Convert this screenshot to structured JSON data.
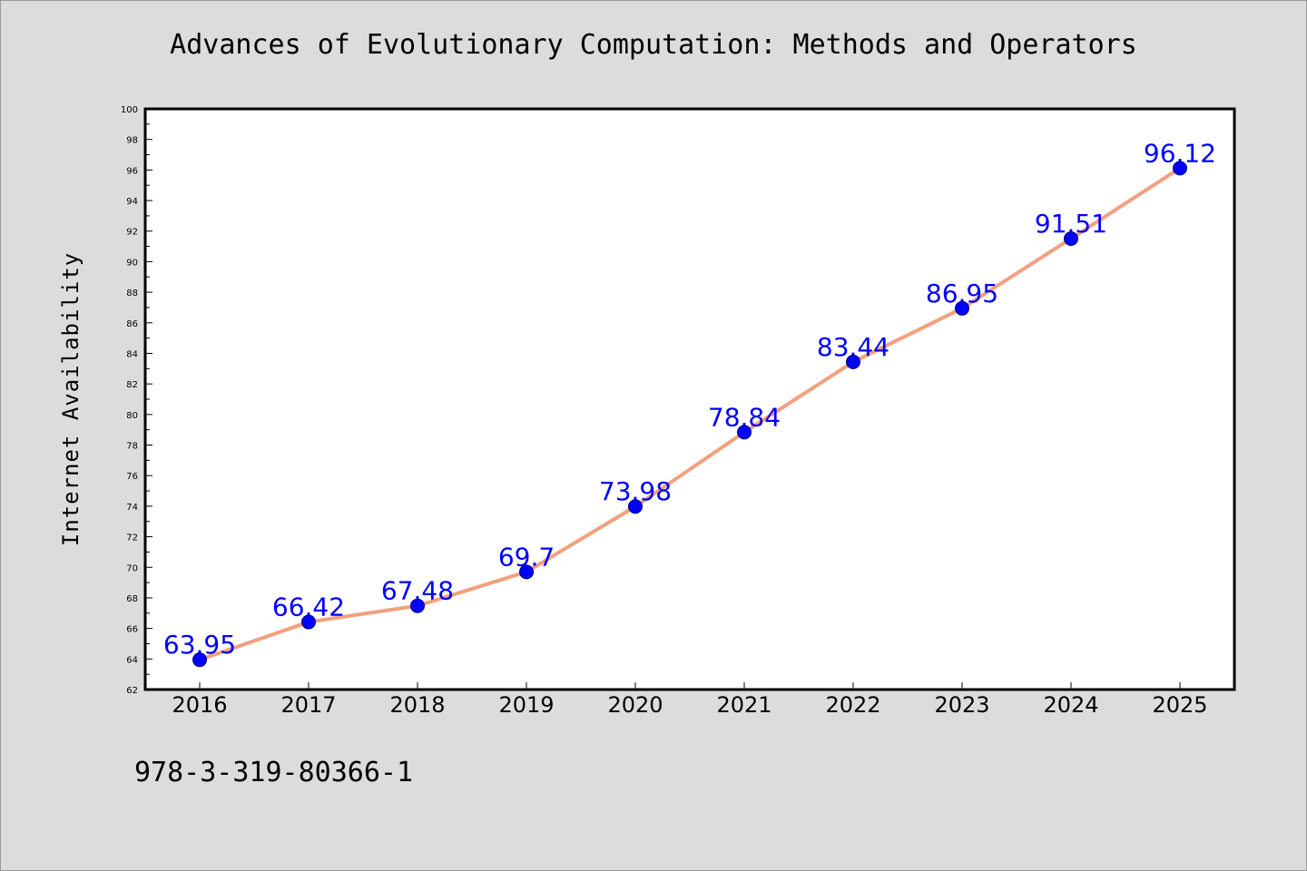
{
  "title": "Advances of Evolutionary Computation: Methods and Operators",
  "footer_text": "978-3-319-80366-1",
  "colors": {
    "background": "#dcdcdc",
    "plot_background": "#ffffff",
    "line": "#f4a07e",
    "marker": "#0000ff",
    "data_label": "#0000ff"
  },
  "chart_data": {
    "type": "line",
    "title": "Advances of Evolutionary Computation: Methods and Operators",
    "xlabel": "",
    "ylabel": "Internet Availability",
    "categories": [
      "2016",
      "2017",
      "2018",
      "2019",
      "2020",
      "2021",
      "2022",
      "2023",
      "2024",
      "2025"
    ],
    "series": [
      {
        "values": [
          63.95,
          66.42,
          67.48,
          69.7,
          73.98,
          78.84,
          83.44,
          86.95,
          91.51,
          96.12
        ],
        "labels": [
          "63.95",
          "66.42",
          "67.48",
          "69.7",
          "73.98",
          "78.84",
          "83.44",
          "86.95",
          "91.51",
          "96.12"
        ]
      }
    ],
    "ylim": [
      62,
      100
    ],
    "ytick_step": 2,
    "grid": false,
    "legend": "none"
  }
}
